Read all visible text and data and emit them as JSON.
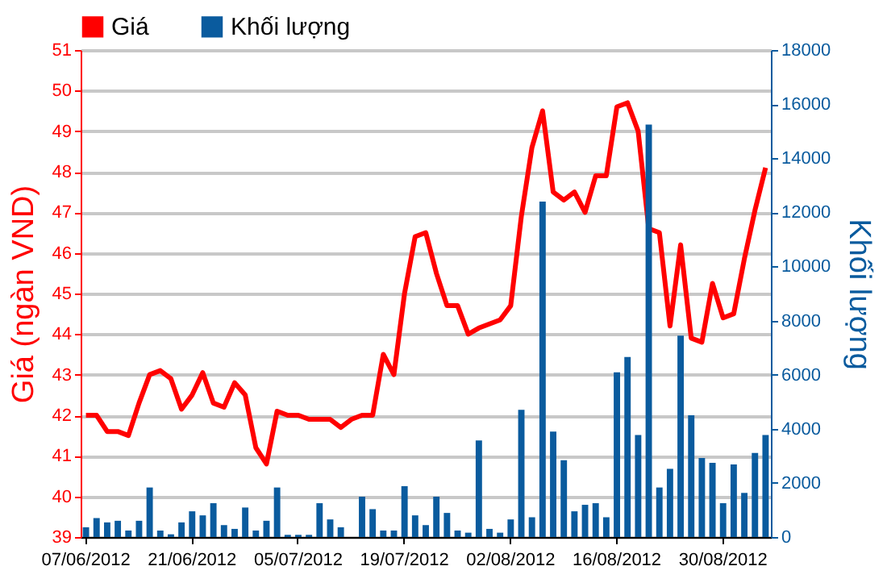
{
  "chart_data": {
    "type": "bar",
    "ylabel": "Giá (ngàn VND)",
    "y2label": "Khối lượng",
    "categories": [
      "07/06/2012",
      null,
      null,
      null,
      null,
      null,
      null,
      null,
      null,
      null,
      "21/06/2012",
      null,
      null,
      null,
      null,
      null,
      null,
      null,
      null,
      null,
      "05/07/2012",
      null,
      null,
      null,
      null,
      null,
      null,
      null,
      null,
      null,
      "19/07/2012",
      null,
      null,
      null,
      null,
      null,
      null,
      null,
      null,
      null,
      "02/08/2012",
      null,
      null,
      null,
      null,
      null,
      null,
      null,
      null,
      null,
      "16/08/2012",
      null,
      null,
      null,
      null,
      null,
      null,
      null,
      null,
      null,
      "30/08/2012",
      null,
      null,
      null,
      null
    ],
    "series": [
      {
        "name": "Giá",
        "type": "line",
        "color": "#ff0000",
        "values": [
          42.0,
          42.0,
          41.6,
          41.6,
          41.5,
          42.3,
          43.0,
          43.1,
          42.9,
          42.15,
          42.5,
          43.05,
          42.3,
          42.2,
          42.8,
          42.5,
          41.2,
          40.8,
          42.1,
          42.0,
          42.0,
          41.9,
          41.9,
          41.9,
          41.7,
          41.9,
          42.0,
          42.0,
          43.5,
          43.0,
          45.0,
          46.4,
          46.5,
          45.5,
          44.7,
          44.7,
          44.0,
          44.15,
          44.25,
          44.35,
          44.7,
          46.9,
          48.6,
          49.5,
          47.5,
          47.3,
          47.5,
          47.0,
          47.9,
          47.9,
          49.6,
          49.7,
          49.0,
          46.6,
          46.5,
          44.2,
          46.2,
          43.9,
          43.8,
          45.25,
          44.4,
          44.5,
          45.85,
          47.05,
          48.1
        ]
      },
      {
        "name": "Khối lượng",
        "axis": "y2",
        "color": "#0a5b9e",
        "values": [
          360,
          700,
          540,
          600,
          240,
          600,
          1830,
          240,
          100,
          540,
          950,
          800,
          1250,
          440,
          300,
          1090,
          240,
          600,
          1830,
          80,
          80,
          80,
          1250,
          650,
          360,
          0,
          1490,
          1030,
          240,
          240,
          1880,
          800,
          440,
          1490,
          890,
          240,
          160,
          3570,
          300,
          160,
          650,
          4700,
          730,
          12400,
          3900,
          2840,
          950,
          1190,
          1250,
          730,
          6090,
          6650,
          3770,
          15240,
          1830,
          2520,
          7440,
          4500,
          2920,
          2740,
          1250,
          2680,
          1630,
          3110,
          3770
        ]
      }
    ],
    "ylim": [
      39,
      51
    ],
    "yticks": [
      39,
      40,
      41,
      42,
      43,
      44,
      45,
      46,
      47,
      48,
      49,
      50,
      51
    ],
    "y2lim": [
      0,
      18000
    ],
    "y2ticks": [
      0,
      2000,
      4000,
      6000,
      8000,
      10000,
      12000,
      14000,
      16000,
      18000
    ],
    "grid": "y",
    "legend": "top left"
  }
}
